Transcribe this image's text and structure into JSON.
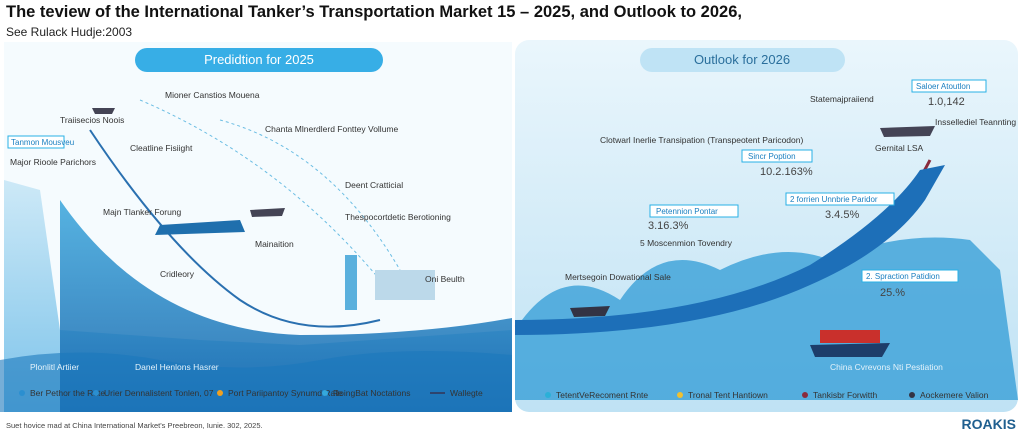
{
  "header": {
    "title": "The teview of the International Tanker’s Transportation Market 15 – 2025, and Outlook to 2026,",
    "subtitle": "See Rulack Hudje:2003"
  },
  "left_panel": {
    "heading": "Predidtion for 2025",
    "labels": [
      "Traiisecios Noois",
      "Tanmon Mousveu",
      "Major Rioole Parichors",
      "Mioner Canstios Mouena",
      "Chanta Mlnerdlerd Fonttey Vollume",
      "Cleatline Fisiight",
      "Deent Cratticial",
      "Majn Tlanker Forung",
      "Thespocortdetic Berotioning",
      "Mainaition",
      "Cridleory",
      "Oni Beulth"
    ],
    "bottom_labels": [
      "Plonlitl Artiier",
      "Danel Henlons Hasrer"
    ]
  },
  "right_panel": {
    "heading": "Outlook for 2026",
    "labels": [
      "Saloer Atoutlon",
      "Statemajpraiiend",
      "1.0,142",
      "Inssellediel Teannting",
      "Clotwarl Inerlie Transipation (Transpeotent Paricodon)",
      "Sincr Poption",
      "10.2.163%",
      "Gernital LSA",
      "2 forrien Unnbrie Paridor",
      "3.4.5%",
      "Petennion Pontar",
      "3.16.3%",
      "5 Moscenmion Tovendry",
      "Mertsegoin Dowational Sale",
      "2. Spraction Patidion",
      "25.%",
      "China Cvrevons Nti Pestiation"
    ]
  },
  "legend": {
    "left": [
      "Ber Pethor the Rate",
      "Urier Dennalistent Tonlen, 07",
      "Port Pariipantoy Synumd Rate",
      "RoingBat Noctations",
      "Wallegte"
    ],
    "right": [
      "TetentVeRecoment Rnte",
      "Tronal Tent Hantiown",
      "Tankisbr Forwitth",
      "Aockemere Valion"
    ]
  },
  "footer": "Suet hovice mad at China International Market's Preebreon, Iunie. 302, 2025.",
  "logo": "ROAKIS"
}
